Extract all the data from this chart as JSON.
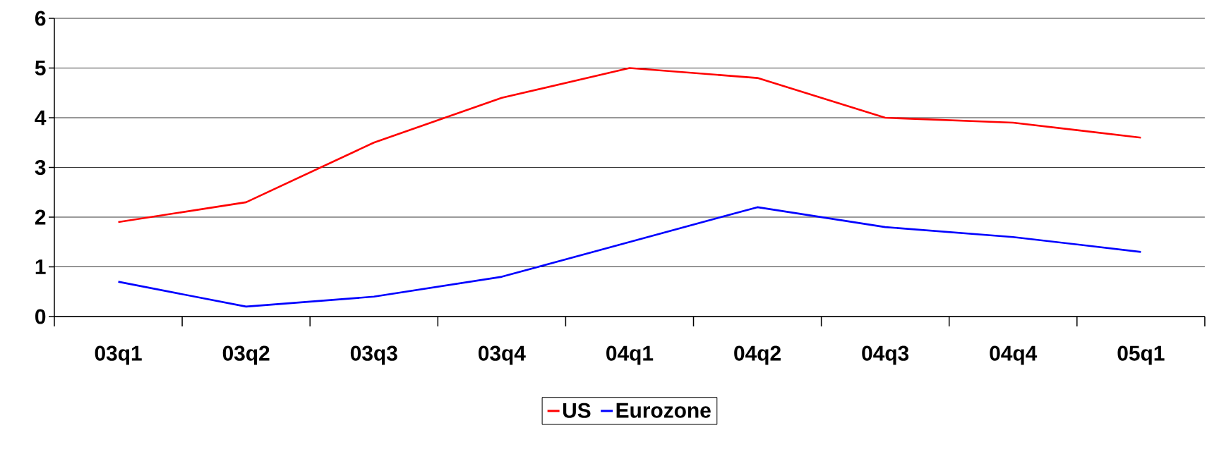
{
  "chart_data": {
    "type": "line",
    "categories": [
      "03q1",
      "03q2",
      "03q3",
      "03q4",
      "04q1",
      "04q2",
      "04q3",
      "04q4",
      "05q1"
    ],
    "series": [
      {
        "name": "US",
        "color": "#ff0000",
        "values": [
          1.9,
          2.3,
          3.5,
          4.4,
          5.0,
          4.8,
          4.0,
          3.9,
          3.6
        ]
      },
      {
        "name": "Eurozone",
        "color": "#0000ff",
        "values": [
          0.7,
          0.2,
          0.4,
          0.8,
          1.5,
          2.2,
          1.8,
          1.6,
          1.3
        ]
      }
    ],
    "ylim": [
      0,
      6
    ],
    "yticks": [
      0,
      1,
      2,
      3,
      4,
      5,
      6
    ],
    "grid": "y",
    "legend": "bottom",
    "marker": "none",
    "line_style": "solid"
  }
}
